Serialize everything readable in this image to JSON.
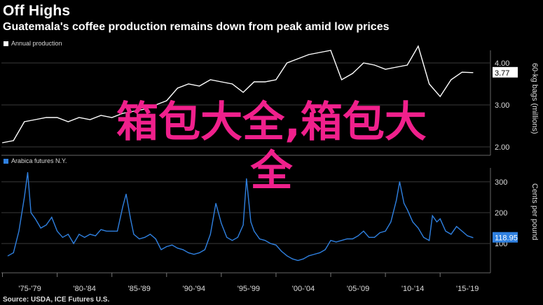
{
  "header": {
    "title": "Off Highs",
    "subtitle": "Guatemala's coffee production remains down from peak amid low prices"
  },
  "source": "Source: USDA, ICE Futures U.S.",
  "overlay": {
    "line1": "箱包大全,箱包大",
    "line2": "全"
  },
  "colors": {
    "production": "#ffffff",
    "futures": "#2f80e0",
    "overlay": "#f0208c",
    "grid": "#444444"
  },
  "chart_data": [
    {
      "type": "line",
      "legend": "Annual production",
      "ylabel": "60-kg bags (millions)",
      "ylim": [
        1.8,
        4.3
      ],
      "yticks": [
        "2.00",
        "3.00",
        "4.00"
      ],
      "last_value_label": "3.77",
      "x": [
        1975,
        1976,
        1977,
        1978,
        1979,
        1980,
        1981,
        1982,
        1983,
        1984,
        1985,
        1986,
        1987,
        1988,
        1989,
        1990,
        1991,
        1992,
        1993,
        1994,
        1995,
        1996,
        1997,
        1998,
        1999,
        2000,
        2001,
        2002,
        2003,
        2004,
        2005,
        2006,
        2007,
        2008,
        2009,
        2010,
        2011,
        2012,
        2013,
        2014,
        2015,
        2016,
        2017,
        2018
      ],
      "values": [
        2.1,
        2.15,
        2.6,
        2.65,
        2.7,
        2.7,
        2.6,
        2.7,
        2.65,
        2.75,
        2.7,
        2.8,
        2.85,
        2.9,
        3.0,
        3.1,
        3.4,
        3.5,
        3.45,
        3.6,
        3.55,
        3.5,
        3.3,
        3.55,
        3.55,
        3.6,
        4.0,
        4.1,
        4.2,
        4.25,
        4.3,
        3.6,
        3.75,
        4.0,
        3.95,
        3.85,
        3.9,
        3.95,
        4.4,
        3.5,
        3.2,
        3.6,
        3.78,
        3.77
      ]
    },
    {
      "type": "line",
      "legend": "Arabica futures N.Y.",
      "ylabel": "Cents per pound",
      "ylim": [
        5,
        345
      ],
      "yticks": [
        "100",
        "200",
        "300"
      ],
      "last_value_label": "118.95",
      "x": [
        1975.5,
        1976,
        1976.5,
        1977,
        1977.3,
        1977.6,
        1978,
        1978.5,
        1979,
        1979.5,
        1980,
        1980.5,
        1981,
        1981.5,
        1982,
        1982.5,
        1983,
        1983.5,
        1984,
        1984.5,
        1985,
        1985.5,
        1986,
        1986.3,
        1986.7,
        1987,
        1987.5,
        1988,
        1988.5,
        1989,
        1989.5,
        1990,
        1990.5,
        1991,
        1991.5,
        1992,
        1992.5,
        1993,
        1993.5,
        1994,
        1994.5,
        1995,
        1995.5,
        1996,
        1996.5,
        1997,
        1997.3,
        1997.7,
        1998,
        1998.5,
        1999,
        1999.5,
        2000,
        2000.5,
        2001,
        2001.5,
        2002,
        2002.5,
        2003,
        2003.5,
        2004,
        2004.5,
        2005,
        2005.5,
        2006,
        2006.5,
        2007,
        2007.5,
        2008,
        2008.5,
        2009,
        2009.5,
        2010,
        2010.5,
        2011,
        2011.3,
        2011.7,
        2012,
        2012.5,
        2013,
        2013.5,
        2014,
        2014.3,
        2014.7,
        2015,
        2015.5,
        2016,
        2016.5,
        2017,
        2017.5,
        2018
      ],
      "values": [
        60,
        70,
        140,
        250,
        330,
        200,
        180,
        150,
        160,
        185,
        140,
        120,
        130,
        100,
        130,
        120,
        130,
        125,
        145,
        140,
        140,
        140,
        220,
        260,
        180,
        130,
        115,
        120,
        130,
        115,
        80,
        90,
        95,
        85,
        80,
        70,
        65,
        70,
        80,
        130,
        230,
        165,
        120,
        110,
        120,
        160,
        310,
        170,
        140,
        115,
        110,
        100,
        95,
        75,
        60,
        50,
        45,
        50,
        60,
        65,
        70,
        80,
        110,
        105,
        110,
        115,
        115,
        125,
        140,
        120,
        120,
        135,
        140,
        170,
        240,
        300,
        230,
        210,
        170,
        150,
        120,
        110,
        190,
        170,
        180,
        140,
        130,
        155,
        140,
        125,
        118.95
      ]
    }
  ],
  "x_axis": {
    "labels": [
      "'75-'79",
      "'80-'84",
      "'85-'89",
      "'90-'94",
      "'95-'99",
      "'00-'04",
      "'05-'09",
      "'10-'14",
      "'15-'19"
    ]
  }
}
